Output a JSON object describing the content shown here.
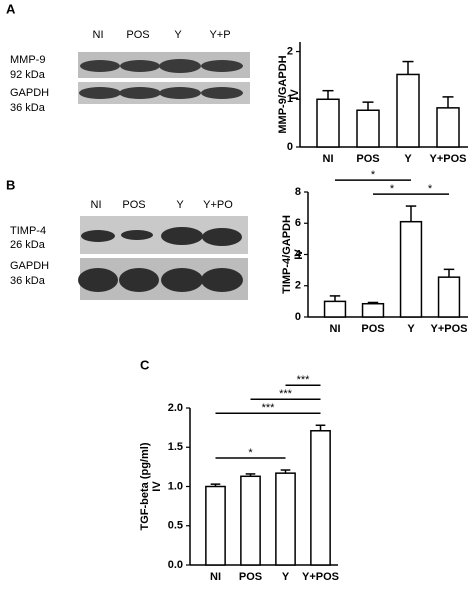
{
  "panels": [
    {
      "label": "A",
      "blot": {
        "lanes": [
          "NI",
          "POS",
          "Y",
          "Y+P"
        ],
        "proteins": [
          {
            "name": "MMP-9",
            "size": "92 kDa"
          },
          {
            "name": "GAPDH",
            "size": "36 kDa"
          }
        ]
      }
    },
    {
      "label": "B",
      "blot": {
        "lanes": [
          "NI",
          "POS",
          "Y",
          "Y+PO"
        ],
        "proteins": [
          {
            "name": "TIMP-4",
            "size": "26 kDa"
          },
          {
            "name": "GAPDH",
            "size": "36 kDa"
          }
        ]
      }
    },
    {
      "label": "C"
    }
  ],
  "chart_data": [
    {
      "type": "bar",
      "ylabel": "MMP-9/GAPDH",
      "ylabel_sub": "IV",
      "categories": [
        "NI",
        "POS",
        "Y",
        "Y+POS"
      ],
      "values": [
        1.0,
        0.77,
        1.52,
        0.82
      ],
      "errors": [
        0.18,
        0.17,
        0.27,
        0.23
      ],
      "color": "#ffffff",
      "ylim": [
        0,
        2.2
      ],
      "yticks": [
        0,
        1,
        2
      ],
      "annotations": []
    },
    {
      "type": "bar",
      "ylabel": "TIMP-4/GAPDH",
      "ylabel_sub": "IV",
      "categories": [
        "NI",
        "POS",
        "Y",
        "Y+POS"
      ],
      "values": [
        1.0,
        0.85,
        6.1,
        2.55
      ],
      "errors": [
        0.35,
        0.08,
        1.0,
        0.5
      ],
      "color": "#ffffff",
      "ylim": [
        0,
        8
      ],
      "yticks": [
        0,
        2,
        4,
        6,
        8
      ],
      "annotations": [
        {
          "label": "*",
          "between": [
            "POS",
            "Y"
          ]
        },
        {
          "label": "*",
          "between": [
            "Y",
            "Y+POS"
          ]
        },
        {
          "label": "*",
          "between": [
            "NI",
            "Y"
          ]
        }
      ]
    },
    {
      "type": "bar",
      "ylabel": "TGF-beta (pg/ml)",
      "ylabel_sub": "IV",
      "categories": [
        "NI",
        "POS",
        "Y",
        "Y+POS"
      ],
      "values": [
        1.0,
        1.13,
        1.17,
        1.71
      ],
      "errors": [
        0.03,
        0.03,
        0.04,
        0.07
      ],
      "color": "#ffffff",
      "ylim": [
        0,
        2.0
      ],
      "yticks": [
        {
          "value": 0,
          "label": "0.0"
        },
        {
          "value": 0.5,
          "label": "0.5"
        },
        {
          "value": 1.0,
          "label": "1.0"
        },
        {
          "value": 1.5,
          "label": "1.5"
        },
        {
          "value": 2.0,
          "label": "2.0"
        }
      ],
      "annotations": [
        {
          "label": "*",
          "between": [
            "NI",
            "Y"
          ]
        },
        {
          "label": "***",
          "between": [
            "NI",
            "Y+POS"
          ]
        },
        {
          "label": "***",
          "between": [
            "POS",
            "Y+POS"
          ]
        },
        {
          "label": "***",
          "between": [
            "Y",
            "Y+POS"
          ]
        }
      ]
    }
  ]
}
